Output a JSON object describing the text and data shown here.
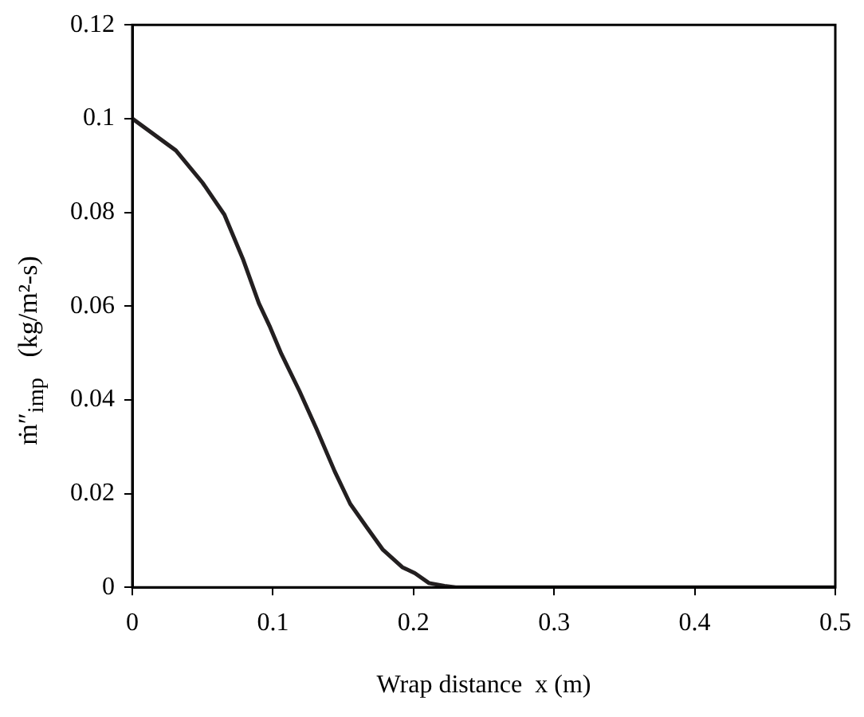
{
  "chart_data": {
    "type": "line",
    "xlabel": "Wrap distance  x (m)",
    "ylabel": "ṁ″$_{imp}$   (kg/m²-s)",
    "x": [
      0,
      0.031,
      0.05,
      0.0655,
      0.079,
      0.09,
      0.098,
      0.106,
      0.119,
      0.131,
      0.144,
      0.155,
      0.167,
      0.178,
      0.192,
      0.201,
      0.211,
      0.222,
      0.23,
      0.5
    ],
    "series": [
      {
        "color": "#231f20",
        "values": [
          0.1,
          0.0932,
          0.0863,
          0.0795,
          0.0698,
          0.0606,
          0.0555,
          0.0498,
          0.0418,
          0.0338,
          0.0247,
          0.0178,
          0.0127,
          0.0081,
          0.0043,
          0.003,
          0.0009,
          0.0003,
          0,
          0
        ]
      }
    ],
    "xlim": [
      0,
      0.5
    ],
    "xticks": [
      0,
      0.1,
      0.2,
      0.3,
      0.4,
      0.5
    ],
    "ylim": [
      0,
      0.12
    ],
    "yticks": [
      0,
      0.02,
      0.04,
      0.06,
      0.08,
      0.1,
      0.12
    ],
    "grid": false,
    "legend": false,
    "marker": "none",
    "line_style": "solid"
  }
}
